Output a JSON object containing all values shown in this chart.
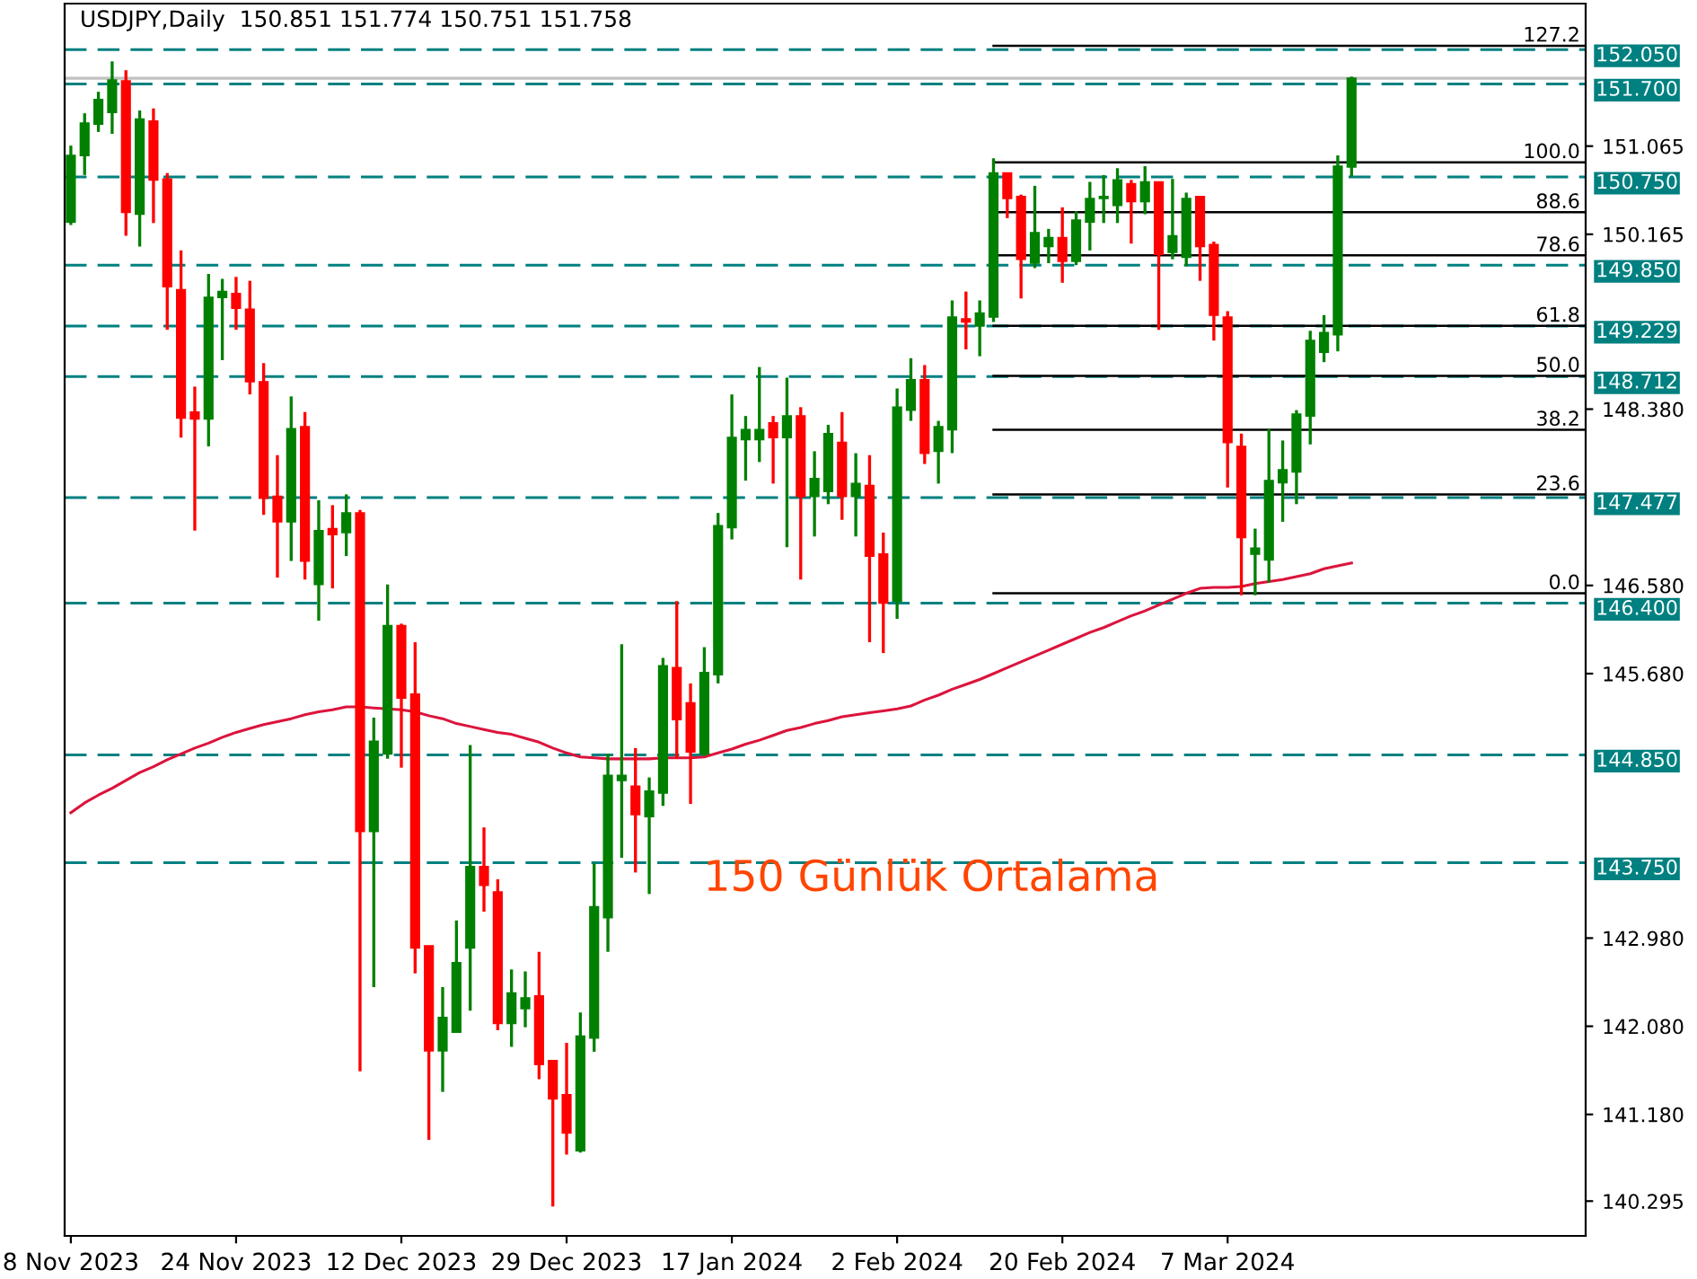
{
  "chart_data": {
    "type": "candlestick",
    "title": "USDJPY,Daily  150.851 151.774 150.751 151.758",
    "annotations": [
      "150 Günlük Ortalama",
      {
        "text": "127.2",
        "y": 152.09
      },
      {
        "text": "100.0",
        "y": 150.9
      },
      {
        "text": "88.6",
        "y": 150.39
      },
      {
        "text": "78.6",
        "y": 149.95
      },
      {
        "text": "61.8",
        "y": 149.23
      },
      {
        "text": "50.0",
        "y": 148.72
      },
      {
        "text": "38.2",
        "y": 148.17
      },
      {
        "text": "23.6",
        "y": 147.51
      },
      {
        "text": "0.0",
        "y": 146.5
      }
    ],
    "categories": [
      "8 Nov 2023",
      null,
      null,
      null,
      null,
      null,
      null,
      null,
      null,
      null,
      null,
      null,
      "24 Nov 2023",
      null,
      null,
      null,
      null,
      null,
      null,
      null,
      null,
      null,
      null,
      null,
      "12 Dec 2023",
      null,
      null,
      null,
      null,
      null,
      null,
      null,
      null,
      null,
      null,
      null,
      "29 Dec 2023",
      null,
      null,
      null,
      null,
      null,
      null,
      null,
      null,
      null,
      null,
      null,
      "17 Jan 2024",
      null,
      null,
      null,
      null,
      null,
      null,
      null,
      null,
      null,
      null,
      null,
      "2 Feb 2024",
      null,
      null,
      null,
      null,
      null,
      null,
      null,
      null,
      null,
      null,
      null,
      "20 Feb 2024",
      null,
      null,
      null,
      null,
      null,
      null,
      null,
      null,
      null,
      null,
      null,
      "7 Mar 2024",
      null,
      null,
      null,
      null,
      null,
      null,
      null,
      null,
      null
    ],
    "ohlc": [
      [
        150.29,
        151.07,
        150.26,
        150.97
      ],
      [
        150.97,
        151.4,
        150.77,
        151.3
      ],
      [
        151.29,
        151.62,
        151.21,
        151.54
      ],
      [
        151.41,
        151.93,
        151.19,
        151.74
      ],
      [
        151.73,
        151.84,
        150.15,
        150.39
      ],
      [
        150.37,
        151.43,
        150.04,
        151.34
      ],
      [
        151.32,
        151.45,
        150.28,
        150.72
      ],
      [
        150.73,
        150.79,
        149.19,
        149.63
      ],
      [
        149.6,
        150.0,
        148.09,
        148.29
      ],
      [
        148.35,
        148.61,
        147.14,
        148.28
      ],
      [
        148.28,
        149.76,
        148.0,
        149.52
      ],
      [
        149.52,
        149.71,
        148.88,
        149.58
      ],
      [
        149.56,
        149.73,
        149.19,
        149.41
      ],
      [
        149.4,
        149.69,
        148.53,
        148.66
      ],
      [
        148.66,
        148.85,
        147.3,
        147.47
      ],
      [
        147.49,
        147.91,
        146.66,
        147.23
      ],
      [
        147.23,
        148.51,
        146.83,
        148.18
      ],
      [
        148.2,
        148.35,
        146.64,
        146.83
      ],
      [
        146.59,
        147.45,
        146.22,
        147.14
      ],
      [
        147.16,
        147.4,
        146.55,
        147.1
      ],
      [
        147.12,
        147.51,
        146.88,
        147.32
      ],
      [
        147.32,
        147.35,
        141.62,
        144.07
      ],
      [
        144.07,
        145.23,
        142.48,
        144.99
      ],
      [
        144.86,
        146.59,
        144.81,
        146.17
      ],
      [
        146.17,
        146.19,
        144.72,
        145.43
      ],
      [
        145.47,
        146.0,
        142.62,
        142.88
      ],
      [
        142.9,
        142.9,
        140.92,
        141.83
      ],
      [
        141.83,
        142.48,
        141.41,
        142.17
      ],
      [
        142.02,
        143.16,
        142.02,
        142.73
      ],
      [
        142.88,
        144.95,
        142.24,
        143.71
      ],
      [
        143.71,
        144.11,
        143.25,
        143.52
      ],
      [
        143.45,
        143.58,
        142.04,
        142.11
      ],
      [
        142.11,
        142.66,
        141.87,
        142.42
      ],
      [
        142.26,
        142.64,
        142.07,
        142.37
      ],
      [
        142.39,
        142.84,
        141.54,
        141.69
      ],
      [
        141.73,
        141.73,
        140.24,
        141.34
      ],
      [
        141.38,
        141.91,
        140.77,
        140.99
      ],
      [
        140.81,
        142.22,
        140.79,
        141.98
      ],
      [
        141.96,
        143.74,
        141.82,
        143.3
      ],
      [
        143.19,
        144.86,
        142.84,
        144.64
      ],
      [
        144.59,
        145.98,
        143.8,
        144.64
      ],
      [
        144.53,
        144.92,
        143.65,
        144.24
      ],
      [
        144.22,
        144.62,
        143.43,
        144.48
      ],
      [
        144.46,
        145.84,
        144.33,
        145.76
      ],
      [
        145.74,
        146.42,
        144.81,
        145.21
      ],
      [
        145.38,
        145.58,
        144.35,
        144.88
      ],
      [
        144.86,
        145.95,
        144.84,
        145.69
      ],
      [
        145.67,
        147.32,
        145.58,
        147.19
      ],
      [
        147.17,
        148.53,
        147.05,
        148.09
      ],
      [
        148.07,
        148.31,
        147.65,
        148.17
      ],
      [
        148.07,
        148.81,
        147.84,
        148.17
      ],
      [
        148.24,
        148.31,
        147.62,
        148.09
      ],
      [
        148.09,
        148.7,
        146.97,
        148.31
      ],
      [
        148.31,
        148.4,
        146.64,
        147.49
      ],
      [
        147.49,
        147.95,
        147.08,
        147.67
      ],
      [
        147.54,
        148.22,
        147.41,
        148.13
      ],
      [
        148.04,
        148.35,
        147.25,
        147.49
      ],
      [
        147.49,
        147.93,
        147.08,
        147.62
      ],
      [
        147.6,
        147.91,
        146.0,
        146.88
      ],
      [
        146.9,
        147.12,
        145.89,
        146.4
      ],
      [
        146.42,
        148.59,
        146.24,
        148.4
      ],
      [
        148.37,
        148.9,
        148.26,
        148.68
      ],
      [
        148.68,
        148.83,
        147.82,
        147.93
      ],
      [
        147.95,
        148.26,
        147.62,
        148.2
      ],
      [
        148.17,
        149.49,
        147.93,
        149.32
      ],
      [
        149.3,
        149.58,
        148.99,
        149.27
      ],
      [
        149.23,
        149.49,
        148.92,
        149.36
      ],
      [
        149.32,
        150.94,
        149.27,
        150.79
      ],
      [
        150.79,
        150.79,
        150.33,
        150.53
      ],
      [
        150.55,
        150.57,
        149.51,
        149.91
      ],
      [
        149.87,
        150.66,
        149.82,
        150.18
      ],
      [
        150.04,
        150.22,
        149.87,
        150.13
      ],
      [
        150.13,
        150.44,
        149.67,
        149.89
      ],
      [
        149.89,
        150.4,
        149.85,
        150.31
      ],
      [
        150.29,
        150.7,
        150.0,
        150.53
      ],
      [
        150.53,
        150.77,
        150.28,
        150.55
      ],
      [
        150.46,
        150.84,
        150.28,
        150.72
      ],
      [
        150.68,
        150.72,
        150.07,
        150.5
      ],
      [
        150.5,
        150.86,
        150.37,
        150.7
      ],
      [
        150.7,
        150.7,
        149.19,
        149.96
      ],
      [
        149.98,
        150.73,
        149.91,
        150.15
      ],
      [
        149.93,
        150.59,
        149.84,
        150.53
      ],
      [
        150.55,
        150.55,
        149.69,
        150.04
      ],
      [
        150.06,
        150.09,
        149.08,
        149.34
      ],
      [
        149.32,
        149.38,
        147.58,
        148.04
      ],
      [
        148.0,
        148.13,
        146.48,
        147.07
      ],
      [
        146.9,
        147.16,
        146.48,
        146.96
      ],
      [
        146.84,
        148.18,
        146.61,
        147.65
      ],
      [
        147.63,
        148.06,
        147.23,
        147.76
      ],
      [
        147.74,
        148.37,
        147.41,
        148.33
      ],
      [
        148.31,
        149.18,
        148.02,
        149.08
      ],
      [
        148.96,
        149.34,
        148.86,
        149.16
      ],
      [
        149.14,
        150.97,
        148.97,
        150.86
      ],
      [
        150.851,
        151.774,
        150.751,
        151.758
      ]
    ],
    "colors": [
      "#008000",
      "#008000",
      "#008000",
      "#008000",
      "#ff0000",
      "#008000",
      "#ff0000",
      "#ff0000",
      "#ff0000",
      "#ff0000",
      "#008000",
      "#008000",
      "#ff0000",
      "#ff0000",
      "#ff0000",
      "#ff0000",
      "#008000",
      "#ff0000",
      "#008000",
      "#ff0000",
      "#008000",
      "#ff0000",
      "#008000",
      "#008000",
      "#ff0000",
      "#ff0000",
      "#ff0000",
      "#008000",
      "#008000",
      "#008000",
      "#ff0000",
      "#ff0000",
      "#008000",
      "#008000",
      "#ff0000",
      "#ff0000",
      "#ff0000",
      "#008000",
      "#008000",
      "#008000",
      "#008000",
      "#ff0000",
      "#008000",
      "#008000",
      "#ff0000",
      "#ff0000",
      "#008000",
      "#008000",
      "#008000",
      "#008000",
      "#008000",
      "#ff0000",
      "#008000",
      "#ff0000",
      "#008000",
      "#008000",
      "#ff0000",
      "#008000",
      "#ff0000",
      "#ff0000",
      "#008000",
      "#008000",
      "#ff0000",
      "#008000",
      "#008000",
      "#ff0000",
      "#008000",
      "#008000",
      "#ff0000",
      "#ff0000",
      "#008000",
      "#008000",
      "#ff0000",
      "#008000",
      "#008000",
      "#008000",
      "#008000",
      "#ff0000",
      "#008000",
      "#ff0000",
      "#008000",
      "#008000",
      "#ff0000",
      "#ff0000",
      "#ff0000",
      "#ff0000",
      "#008000",
      "#008000",
      "#008000",
      "#008000",
      "#008000",
      "#008000",
      "#008000",
      "#008000"
    ],
    "series": [
      {
        "type": "line",
        "color": "#dc143c",
        "values": [
          144.26,
          144.36,
          144.44,
          144.51,
          144.59,
          144.67,
          144.73,
          144.8,
          144.86,
          144.92,
          144.97,
          145.03,
          145.08,
          145.12,
          145.16,
          145.19,
          145.22,
          145.26,
          145.29,
          145.31,
          145.34,
          145.34,
          145.33,
          145.32,
          145.31,
          145.29,
          145.25,
          145.22,
          145.17,
          145.14,
          145.11,
          145.08,
          145.06,
          145.02,
          144.98,
          144.92,
          144.87,
          144.83,
          144.82,
          144.81,
          144.81,
          144.81,
          144.81,
          144.82,
          144.82,
          144.82,
          144.83,
          144.87,
          144.91,
          144.96,
          145.0,
          145.05,
          145.1,
          145.13,
          145.17,
          145.2,
          145.24,
          145.26,
          145.28,
          145.3,
          145.32,
          145.35,
          145.41,
          145.46,
          145.52,
          145.57,
          145.62,
          145.68,
          145.74,
          145.8,
          145.86,
          145.92,
          145.98,
          146.04,
          146.1,
          146.15,
          146.21,
          146.27,
          146.32,
          146.38,
          146.44,
          146.5,
          146.55,
          146.56,
          146.56,
          146.57,
          146.6,
          146.62,
          146.64,
          146.67,
          146.7,
          146.75,
          146.78,
          146.81
        ]
      }
    ],
    "ylim": [
      139.94,
      152.52
    ],
    "yticks": [
      {
        "value": 151.065,
        "label": "151.065"
      },
      {
        "value": 150.165,
        "label": "150.165"
      },
      {
        "value": 148.38,
        "label": "148.380"
      },
      {
        "value": 146.58,
        "label": "146.580"
      },
      {
        "value": 145.68,
        "label": "145.680"
      },
      {
        "value": 142.98,
        "label": "142.980"
      },
      {
        "value": 142.08,
        "label": "142.080"
      },
      {
        "value": 141.18,
        "label": "141.180"
      },
      {
        "value": 140.295,
        "label": "140.295"
      }
    ],
    "ref_lines": [
      {
        "axis": "y",
        "value": 152.09,
        "color": "#000000",
        "line_style": "solid"
      },
      {
        "axis": "y",
        "value": 150.9,
        "color": "#000000",
        "line_style": "solid"
      },
      {
        "axis": "y",
        "value": 150.39,
        "color": "#000000",
        "line_style": "solid"
      },
      {
        "axis": "y",
        "value": 149.95,
        "color": "#000000",
        "line_style": "solid"
      },
      {
        "axis": "y",
        "value": 149.23,
        "color": "#000000",
        "line_style": "solid"
      },
      {
        "axis": "y",
        "value": 148.72,
        "color": "#000000",
        "line_style": "solid"
      },
      {
        "axis": "y",
        "value": 148.17,
        "color": "#000000",
        "line_style": "solid"
      },
      {
        "axis": "y",
        "value": 147.51,
        "color": "#000000",
        "line_style": "solid"
      },
      {
        "axis": "y",
        "value": 146.5,
        "color": "#000000",
        "line_style": "solid"
      },
      {
        "axis": "y",
        "value": 151.758,
        "color": "#c0c0c0",
        "line_style": "solid"
      },
      {
        "axis": "y",
        "value": 152.05,
        "label": "152.050",
        "color": "#008080",
        "line_style": "dashed"
      },
      {
        "axis": "y",
        "value": 151.7,
        "label": "151.700",
        "color": "#008080",
        "line_style": "dashed"
      },
      {
        "axis": "y",
        "value": 150.75,
        "label": "150.750",
        "color": "#008080",
        "line_style": "dashed"
      },
      {
        "axis": "y",
        "value": 149.85,
        "label": "149.850",
        "color": "#008080",
        "line_style": "dashed"
      },
      {
        "axis": "y",
        "value": 149.229,
        "label": "149.229",
        "color": "#008080",
        "line_style": "dashed"
      },
      {
        "axis": "y",
        "value": 148.712,
        "label": "148.712",
        "color": "#008080",
        "line_style": "dashed"
      },
      {
        "axis": "y",
        "value": 147.477,
        "label": "147.477",
        "color": "#008080",
        "line_style": "dashed"
      },
      {
        "axis": "y",
        "value": 146.4,
        "label": "146.400",
        "color": "#008080",
        "line_style": "dashed"
      },
      {
        "axis": "y",
        "value": 144.85,
        "label": "144.850",
        "color": "#008080",
        "line_style": "dashed"
      },
      {
        "axis": "y",
        "value": 143.75,
        "label": "143.750",
        "color": "#008080",
        "line_style": "dashed"
      }
    ],
    "grid": false,
    "legend": false
  }
}
